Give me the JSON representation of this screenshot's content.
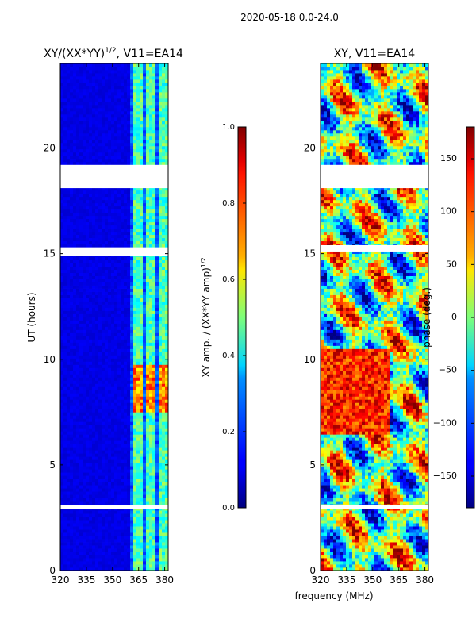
{
  "suptitle": "2020-05-18 0.0-24.0",
  "chart_data": [
    {
      "type": "heatmap",
      "title_main": "XY/(XX*YY)",
      "title_sup": "1/2",
      "title_tail": ", V11=EA14",
      "xlabel": "frequency (MHz)",
      "ylabel": "UT (hours)",
      "xlim": [
        320,
        382
      ],
      "ylim": [
        0,
        24
      ],
      "xticks": [
        320,
        335,
        350,
        365,
        380
      ],
      "yticks": [
        0,
        5,
        10,
        15,
        20
      ],
      "colorbar": {
        "label_main": "XY amp. / (XX*YY amp)",
        "label_sup": "1/2",
        "range": [
          0.0,
          1.0
        ],
        "ticks": [
          "0.0",
          "0.2",
          "0.4",
          "0.6",
          "0.8",
          "1.0"
        ],
        "colormap": "jet"
      },
      "flagged_bands_hours": [
        [
          18.1,
          19.2
        ],
        [
          14.9,
          15.3
        ],
        [
          2.9,
          3.1
        ]
      ]
    },
    {
      "type": "heatmap",
      "title_main": "XY, V11=EA14",
      "xlim": [
        320,
        382
      ],
      "ylim": [
        0,
        24
      ],
      "xticks": [
        320,
        335,
        350,
        365,
        380
      ],
      "yticks": [
        0,
        5,
        10,
        15,
        20
      ],
      "colorbar": {
        "label_main": "phase (deg.)",
        "range": [
          -180,
          180
        ],
        "ticks": [
          "−150",
          "−100",
          "−50",
          "0",
          "50",
          "100",
          "150"
        ],
        "tick_values": [
          -150,
          -100,
          -50,
          0,
          50,
          100,
          150
        ],
        "colormap": "jet"
      },
      "flagged_bands_hours": [
        [
          18.1,
          19.2
        ],
        [
          15.1,
          15.4
        ],
        [
          2.9,
          3.1
        ]
      ]
    }
  ]
}
